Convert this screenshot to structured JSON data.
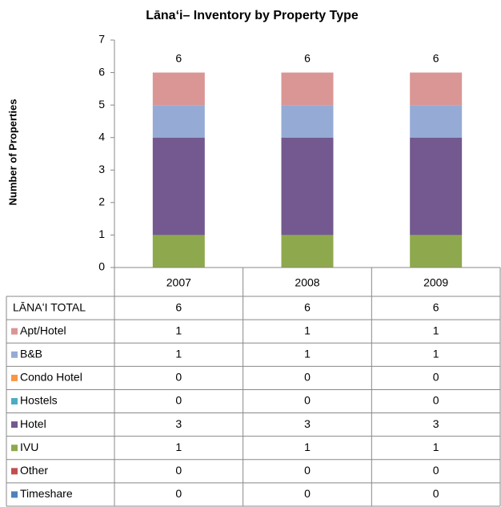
{
  "chart_data": {
    "type": "stacked_bar",
    "title": "Lānaʻi– Inventory by Property  Type",
    "y_label": "Number of Properties",
    "categories": [
      "2007",
      "2008",
      "2009"
    ],
    "ylim": [
      0,
      7
    ],
    "yticks": [
      0,
      1,
      2,
      3,
      4,
      5,
      6,
      7
    ],
    "total": {
      "name": "LĀNAʻI TOTAL",
      "values": [
        6,
        6,
        6
      ]
    },
    "series": [
      {
        "name": "Apt/Hotel",
        "color": "#d99694",
        "values": [
          1,
          1,
          1
        ]
      },
      {
        "name": "B&B",
        "color": "#95abd5",
        "values": [
          1,
          1,
          1
        ]
      },
      {
        "name": "Condo Hotel",
        "color": "#f79646",
        "values": [
          0,
          0,
          0
        ]
      },
      {
        "name": "Hostels",
        "color": "#4bacc6",
        "values": [
          0,
          0,
          0
        ]
      },
      {
        "name": "Hotel",
        "color": "#73598f",
        "values": [
          3,
          3,
          3
        ]
      },
      {
        "name": "IVU",
        "color": "#8ea94d",
        "values": [
          1,
          1,
          1
        ]
      },
      {
        "name": "Other",
        "color": "#c0504d",
        "values": [
          0,
          0,
          0
        ]
      },
      {
        "name": "Timeshare",
        "color": "#4f81bd",
        "values": [
          0,
          0,
          0
        ]
      }
    ]
  }
}
